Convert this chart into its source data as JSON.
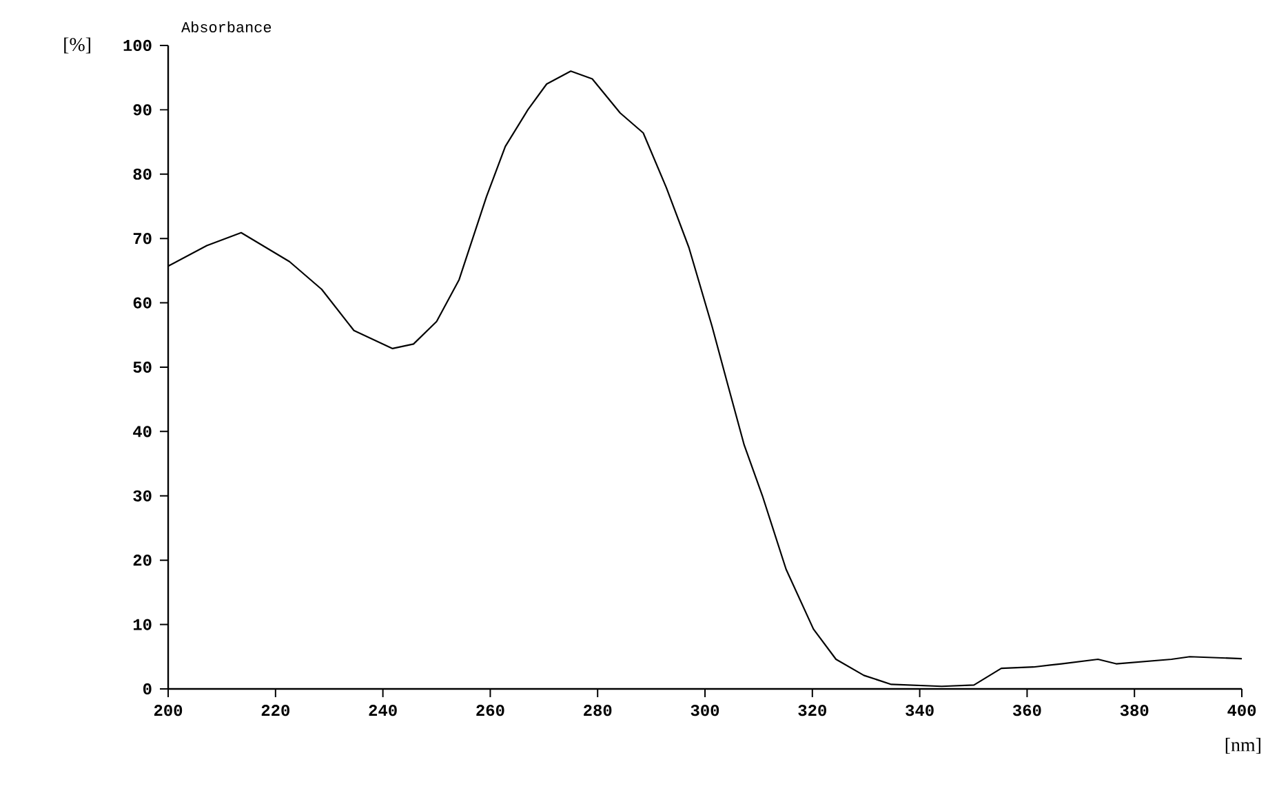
{
  "chart_data": {
    "type": "line",
    "title": "Absorbance",
    "ylabel": "[%]",
    "xlabel": "[nm]",
    "xlim": [
      200,
      400
    ],
    "xticks": [
      200,
      220,
      240,
      260,
      280,
      300,
      320,
      340,
      360,
      380,
      400
    ],
    "ylim": [
      0,
      100
    ],
    "yticks": [
      0,
      10,
      20,
      30,
      40,
      50,
      60,
      70,
      80,
      90,
      100
    ],
    "grid": false,
    "marker": "none",
    "line_style": "solid",
    "series": [
      {
        "color": "#000000",
        "x": [
          200,
          207.2,
          213.6,
          222.6,
          228.6,
          234.6,
          241.8,
          245.7,
          250,
          254.2,
          259.3,
          262.8,
          267,
          270.5,
          275,
          279,
          284.2,
          288.5,
          292.8,
          297,
          301.3,
          304.3,
          307.3,
          310.7,
          315.1,
          320.2,
          324.4,
          329.6,
          334.7,
          344.1,
          350.1,
          355.2,
          361.2,
          366.4,
          373.2,
          376.6,
          386.9,
          390.3,
          400
        ],
        "values": [
          65.7,
          68.9,
          70.9,
          66.4,
          62.1,
          55.7,
          52.9,
          53.6,
          57.1,
          63.6,
          76.5,
          84.3,
          90,
          94,
          96,
          94.8,
          89.5,
          86.4,
          77.9,
          68.6,
          56.4,
          47.1,
          37.9,
          30,
          18.6,
          9.3,
          4.6,
          2.1,
          0.7,
          0.4,
          0.6,
          3.2,
          3.4,
          3.9,
          4.6,
          3.9,
          4.6,
          5,
          4.7
        ]
      }
    ]
  }
}
